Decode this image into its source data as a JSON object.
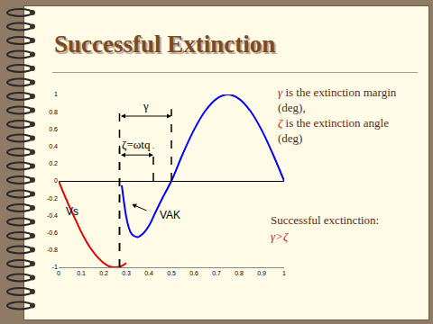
{
  "chart_data": {
    "type": "line",
    "title": "Successful Extinction",
    "xlim": [
      0,
      1
    ],
    "ylim": [
      -1,
      1
    ],
    "xticks": [
      0,
      0.1,
      0.2,
      0.3,
      0.4,
      0.5,
      0.6,
      0.7,
      0.8,
      0.9,
      1
    ],
    "yticks": [
      -1,
      -0.8,
      -0.6,
      -0.4,
      -0.2,
      0,
      0.2,
      0.4,
      0.6,
      0.8,
      1
    ],
    "grid": false,
    "series": [
      {
        "name": "Vs",
        "color": "#e00000",
        "x": [
          0,
          0.025,
          0.05,
          0.075,
          0.1,
          0.125,
          0.15,
          0.175,
          0.2,
          0.225,
          0.25,
          0.275,
          0.3
        ],
        "values": [
          0,
          -0.16,
          -0.31,
          -0.45,
          -0.59,
          -0.71,
          -0.81,
          -0.89,
          -0.95,
          -0.99,
          -1.0,
          -0.99,
          -0.95
        ],
        "label_x": 0.06,
        "label_y": -0.35
      },
      {
        "name": "VAK",
        "color": "#0000ff",
        "x": [
          0.28,
          0.29,
          0.3,
          0.31,
          0.32,
          0.33,
          0.35,
          0.37,
          0.4,
          0.43,
          0.46,
          0.5,
          0.55,
          0.6,
          0.65,
          0.7,
          0.75,
          0.8,
          0.85,
          0.9,
          0.95,
          1.0
        ],
        "values": [
          -0.05,
          -0.25,
          -0.42,
          -0.53,
          -0.6,
          -0.63,
          -0.65,
          -0.62,
          -0.52,
          -0.36,
          -0.2,
          0,
          0.31,
          0.59,
          0.81,
          0.95,
          1.0,
          0.95,
          0.81,
          0.59,
          0.31,
          0
        ],
        "label_x": 0.44,
        "label_y": -0.4,
        "point_x": 0.325,
        "point_y": -0.27
      }
    ],
    "annotations": [
      {
        "text": "γ",
        "x0": 0.27,
        "x1": 0.5,
        "y": 0.75,
        "x0_from": -1,
        "x1_from": 0
      },
      {
        "text": "ζ=ωtq",
        "x0": 0.27,
        "x1": 0.42,
        "y": 0.3,
        "x0_from": -1,
        "x1_from": 0
      }
    ]
  },
  "notes": [
    {
      "symbol": "γ",
      "text": "is the extinction margin (deg),"
    },
    {
      "symbol": "ζ",
      "text": "is the extinction angle (deg)"
    }
  ],
  "condition": {
    "text": "Successful exctinction:",
    "formula": "γ>ζ"
  }
}
